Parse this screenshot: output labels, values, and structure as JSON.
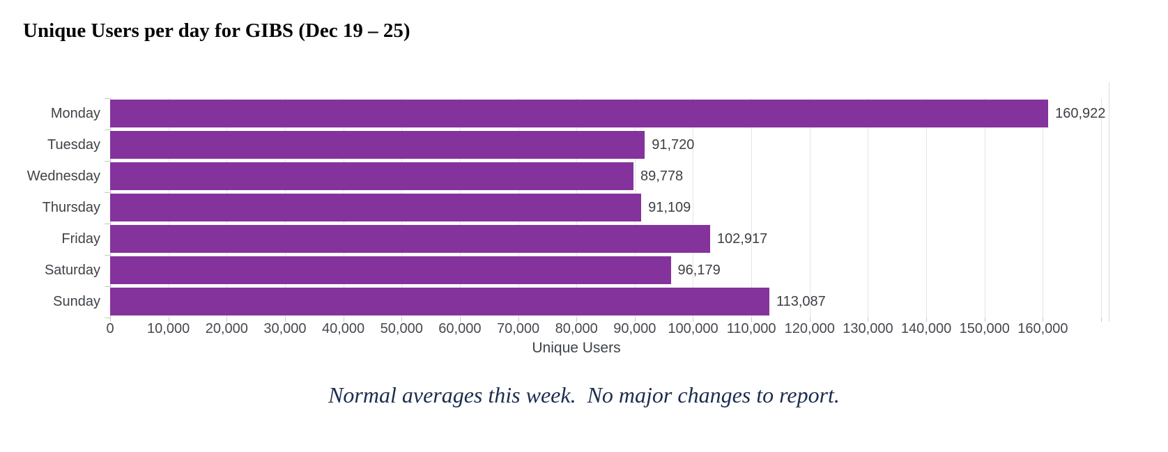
{
  "title": "Unique Users per day for GIBS (Dec 19 – 25)",
  "chart_data": {
    "type": "bar",
    "orientation": "horizontal",
    "title": "Unique Users per day for GIBS (Dec 19 – 25)",
    "categories": [
      "Monday",
      "Tuesday",
      "Wednesday",
      "Thursday",
      "Friday",
      "Saturday",
      "Sunday"
    ],
    "values": [
      160922,
      91720,
      89778,
      91109,
      102917,
      96179,
      113087
    ],
    "value_labels": [
      "160,922",
      "91,720",
      "89,778",
      "91,109",
      "102,917",
      "96,179",
      "113,087"
    ],
    "xlabel": "Unique Users",
    "ylabel": "",
    "xlim": [
      0,
      171430
    ],
    "xtick_step": 10000,
    "xtick_labels": [
      "0",
      "10,000",
      "20,000",
      "30,000",
      "40,000",
      "50,000",
      "60,000",
      "70,000",
      "80,000",
      "90,000",
      "100,000",
      "110,000",
      "120,000",
      "130,000",
      "140,000",
      "150,000",
      "160,000"
    ],
    "grid": true,
    "legend": "none",
    "bar_color": "#85339c"
  },
  "note": "Normal averages this week.  No major changes to report.",
  "colors": {
    "bar": "#85339c",
    "grid": "#e4e4e8",
    "axis": "#c7c7cd",
    "plot_border": "#dbdbe0",
    "label_text": "#3e4348",
    "tick_text": "#45484e",
    "value_text": "#3b3f45",
    "title_text": "#050505",
    "note_text": "#1c2d4d"
  }
}
